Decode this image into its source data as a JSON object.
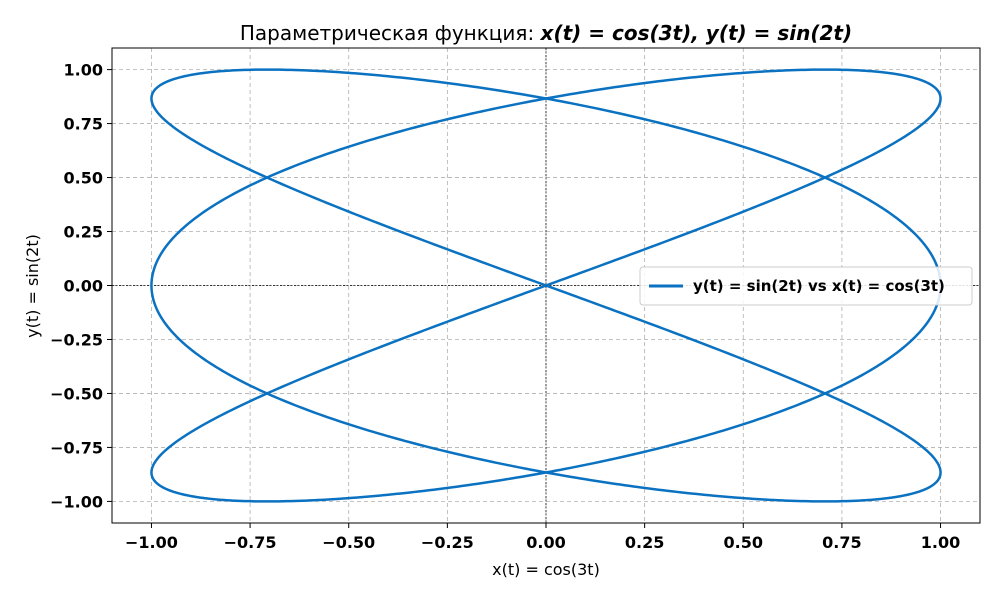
{
  "chart_data": {
    "type": "line",
    "title": {
      "prefix": "Параметрическая функция: ",
      "math": "x(t) = cos(3t), y(t) = sin(2t)"
    },
    "xlabel": "x(t) = cos(3t)",
    "ylabel": "y(t) = sin(2t)",
    "xlim": [
      -1.1,
      1.1
    ],
    "ylim": [
      -1.1,
      1.1
    ],
    "xticks": [
      -1.0,
      -0.75,
      -0.5,
      -0.25,
      0.0,
      0.25,
      0.5,
      0.75,
      1.0
    ],
    "yticks": [
      -1.0,
      -0.75,
      -0.5,
      -0.25,
      0.0,
      0.25,
      0.5,
      0.75,
      1.0
    ],
    "xtick_labels": [
      "−1.00",
      "−0.75",
      "−0.50",
      "−0.25",
      "0.00",
      "0.25",
      "0.50",
      "0.75",
      "1.00"
    ],
    "ytick_labels": [
      "−1.00",
      "−0.75",
      "−0.50",
      "−0.25",
      "0.00",
      "0.25",
      "0.50",
      "0.75",
      "1.00"
    ],
    "grid": true,
    "reference_lines": {
      "x": 0,
      "y": 0
    },
    "legend_placement": "center-right",
    "series": [
      {
        "name": "y(t) = sin(2t) vs x(t) = cos(3t)",
        "color": "#0a72c1",
        "x_function": "cos(3t)",
        "y_function": "sin(2t)",
        "t_range": [
          0,
          6.283185307
        ]
      }
    ]
  }
}
